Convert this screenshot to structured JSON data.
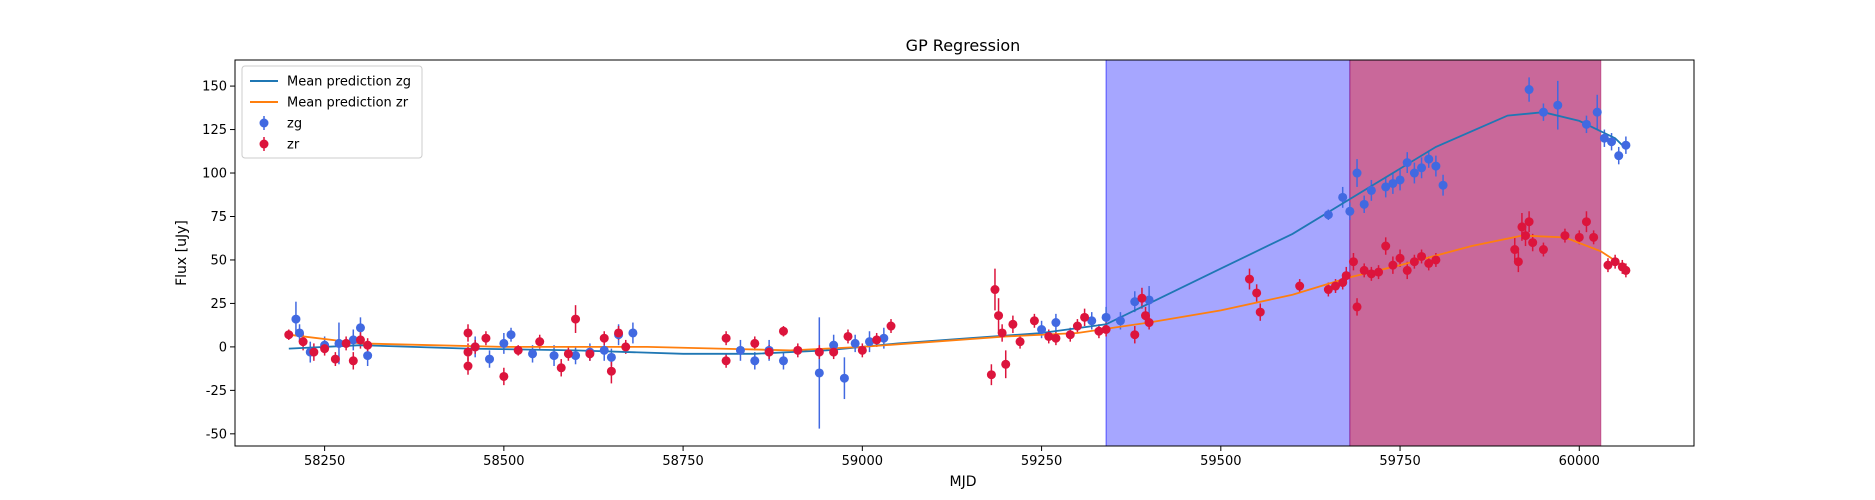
{
  "chart_data": {
    "type": "scatter",
    "title": "GP Regression",
    "xlabel": "MJD",
    "ylabel": "Flux [uJy]",
    "xlim": [
      58125,
      60160
    ],
    "ylim": [
      -57,
      165
    ],
    "xticks": [
      58250,
      58500,
      58750,
      59000,
      59250,
      59500,
      59750,
      60000
    ],
    "yticks": [
      -50,
      -25,
      0,
      25,
      50,
      75,
      100,
      125,
      150
    ],
    "grid": false,
    "legend_position": "top-left",
    "legend": [
      {
        "label": "Mean prediction zg",
        "kind": "line",
        "color": "#1f77b4"
      },
      {
        "label": "Mean prediction zr",
        "kind": "line",
        "color": "#ff7f0e"
      },
      {
        "label": "zg",
        "kind": "errorbar",
        "color": "#4169e1"
      },
      {
        "label": "zr",
        "kind": "errorbar",
        "color": "#dc143c"
      }
    ],
    "shaded_regions": [
      {
        "x0": 59340,
        "x1": 59680,
        "color": "#0000ff",
        "opacity": 0.35
      },
      {
        "x0": 59680,
        "x1": 60030,
        "color": "#b0206a",
        "opacity": 0.68
      }
    ],
    "lines": [
      {
        "name": "Mean prediction zg",
        "color": "#1f77b4",
        "x": [
          58200,
          58300,
          58450,
          58600,
          58750,
          58850,
          58950,
          59050,
          59150,
          59250,
          59340,
          59400,
          59500,
          59600,
          59700,
          59800,
          59900,
          59950,
          60000,
          60050,
          60060
        ],
        "y": [
          -1,
          1,
          -1,
          -2,
          -4,
          -4,
          -2,
          2,
          5,
          8,
          13,
          25,
          45,
          65,
          90,
          115,
          133,
          135,
          130,
          120,
          116
        ]
      },
      {
        "name": "Mean prediction zr",
        "color": "#ff7f0e",
        "x": [
          58200,
          58300,
          58400,
          58500,
          58600,
          58700,
          58800,
          58900,
          59000,
          59100,
          59200,
          59300,
          59400,
          59500,
          59600,
          59680,
          59750,
          59850,
          59920,
          59980,
          60030,
          60060
        ],
        "y": [
          7,
          2,
          1,
          0,
          0,
          0,
          -1,
          -2,
          0,
          3,
          6,
          8,
          14,
          21,
          30,
          40,
          47,
          58,
          64,
          63,
          55,
          47
        ]
      }
    ],
    "series": [
      {
        "name": "zg",
        "color": "#4169e1",
        "points": [
          {
            "x": 58210,
            "y": 16,
            "err": 10
          },
          {
            "x": 58215,
            "y": 8,
            "err": 5
          },
          {
            "x": 58230,
            "y": -3,
            "err": 6
          },
          {
            "x": 58250,
            "y": 1,
            "err": 5
          },
          {
            "x": 58270,
            "y": 2,
            "err": 12
          },
          {
            "x": 58290,
            "y": 4,
            "err": 6
          },
          {
            "x": 58300,
            "y": 11,
            "err": 6
          },
          {
            "x": 58310,
            "y": -5,
            "err": 6
          },
          {
            "x": 58460,
            "y": 0,
            "err": 6
          },
          {
            "x": 58480,
            "y": -7,
            "err": 5
          },
          {
            "x": 58500,
            "y": 2,
            "err": 6
          },
          {
            "x": 58510,
            "y": 7,
            "err": 4
          },
          {
            "x": 58540,
            "y": -4,
            "err": 5
          },
          {
            "x": 58570,
            "y": -5,
            "err": 6
          },
          {
            "x": 58600,
            "y": -5,
            "err": 5
          },
          {
            "x": 58620,
            "y": -3,
            "err": 5
          },
          {
            "x": 58640,
            "y": -2,
            "err": 6
          },
          {
            "x": 58650,
            "y": -6,
            "err": 5
          },
          {
            "x": 58660,
            "y": 7,
            "err": 6
          },
          {
            "x": 58680,
            "y": 8,
            "err": 6
          },
          {
            "x": 58830,
            "y": -2,
            "err": 6
          },
          {
            "x": 58850,
            "y": -8,
            "err": 5
          },
          {
            "x": 58870,
            "y": -2,
            "err": 6
          },
          {
            "x": 58890,
            "y": -8,
            "err": 5
          },
          {
            "x": 58940,
            "y": -15,
            "err": 32
          },
          {
            "x": 58960,
            "y": 1,
            "err": 6
          },
          {
            "x": 58975,
            "y": -18,
            "err": 12
          },
          {
            "x": 58990,
            "y": 2,
            "err": 5
          },
          {
            "x": 59010,
            "y": 3,
            "err": 6
          },
          {
            "x": 59030,
            "y": 5,
            "err": 6
          },
          {
            "x": 59250,
            "y": 10,
            "err": 5
          },
          {
            "x": 59270,
            "y": 14,
            "err": 5
          },
          {
            "x": 59320,
            "y": 15,
            "err": 5
          },
          {
            "x": 59340,
            "y": 17,
            "err": 6
          },
          {
            "x": 59360,
            "y": 15,
            "err": 5
          },
          {
            "x": 59380,
            "y": 26,
            "err": 6
          },
          {
            "x": 59400,
            "y": 27,
            "err": 8
          },
          {
            "x": 59650,
            "y": 76,
            "err": 3
          },
          {
            "x": 59670,
            "y": 86,
            "err": 6
          },
          {
            "x": 59680,
            "y": 78,
            "err": 5
          },
          {
            "x": 59690,
            "y": 100,
            "err": 8
          },
          {
            "x": 59700,
            "y": 82,
            "err": 5
          },
          {
            "x": 59710,
            "y": 90,
            "err": 6
          },
          {
            "x": 59730,
            "y": 92,
            "err": 6
          },
          {
            "x": 59740,
            "y": 94,
            "err": 6
          },
          {
            "x": 59750,
            "y": 96,
            "err": 6
          },
          {
            "x": 59760,
            "y": 106,
            "err": 6
          },
          {
            "x": 59770,
            "y": 100,
            "err": 6
          },
          {
            "x": 59780,
            "y": 103,
            "err": 6
          },
          {
            "x": 59790,
            "y": 108,
            "err": 5
          },
          {
            "x": 59800,
            "y": 104,
            "err": 6
          },
          {
            "x": 59810,
            "y": 93,
            "err": 6
          },
          {
            "x": 59930,
            "y": 148,
            "err": 7
          },
          {
            "x": 59950,
            "y": 135,
            "err": 5
          },
          {
            "x": 59970,
            "y": 139,
            "err": 14
          },
          {
            "x": 60010,
            "y": 128,
            "err": 5
          },
          {
            "x": 60025,
            "y": 135,
            "err": 10
          },
          {
            "x": 60035,
            "y": 120,
            "err": 5
          },
          {
            "x": 60045,
            "y": 118,
            "err": 5
          },
          {
            "x": 60055,
            "y": 110,
            "err": 5
          },
          {
            "x": 60065,
            "y": 116,
            "err": 5
          }
        ]
      },
      {
        "name": "zr",
        "color": "#dc143c",
        "points": [
          {
            "x": 58200,
            "y": 7,
            "err": 3
          },
          {
            "x": 58220,
            "y": 3,
            "err": 5
          },
          {
            "x": 58235,
            "y": -3,
            "err": 5
          },
          {
            "x": 58250,
            "y": -1,
            "err": 4
          },
          {
            "x": 58265,
            "y": -7,
            "err": 4
          },
          {
            "x": 58280,
            "y": 2,
            "err": 4
          },
          {
            "x": 58290,
            "y": -8,
            "err": 5
          },
          {
            "x": 58300,
            "y": 4,
            "err": 5
          },
          {
            "x": 58310,
            "y": 1,
            "err": 4
          },
          {
            "x": 58450,
            "y": 8,
            "err": 5
          },
          {
            "x": 58450,
            "y": -3,
            "err": 5
          },
          {
            "x": 58450,
            "y": -11,
            "err": 5
          },
          {
            "x": 58460,
            "y": 0,
            "err": 4
          },
          {
            "x": 58475,
            "y": 5,
            "err": 4
          },
          {
            "x": 58500,
            "y": -17,
            "err": 5
          },
          {
            "x": 58520,
            "y": -2,
            "err": 3
          },
          {
            "x": 58550,
            "y": 3,
            "err": 4
          },
          {
            "x": 58580,
            "y": -12,
            "err": 5
          },
          {
            "x": 58590,
            "y": -4,
            "err": 4
          },
          {
            "x": 58600,
            "y": 16,
            "err": 8
          },
          {
            "x": 58620,
            "y": -4,
            "err": 4
          },
          {
            "x": 58640,
            "y": 5,
            "err": 4
          },
          {
            "x": 58650,
            "y": -14,
            "err": 7
          },
          {
            "x": 58660,
            "y": 8,
            "err": 4
          },
          {
            "x": 58670,
            "y": 0,
            "err": 4
          },
          {
            "x": 58810,
            "y": 5,
            "err": 4
          },
          {
            "x": 58810,
            "y": -8,
            "err": 4
          },
          {
            "x": 58850,
            "y": 2,
            "err": 4
          },
          {
            "x": 58870,
            "y": -3,
            "err": 4
          },
          {
            "x": 58890,
            "y": 9,
            "err": 3
          },
          {
            "x": 58910,
            "y": -2,
            "err": 4
          },
          {
            "x": 58940,
            "y": -3,
            "err": 4
          },
          {
            "x": 58960,
            "y": -3,
            "err": 4
          },
          {
            "x": 58980,
            "y": 6,
            "err": 4
          },
          {
            "x": 59000,
            "y": -2,
            "err": 4
          },
          {
            "x": 59020,
            "y": 4,
            "err": 4
          },
          {
            "x": 59040,
            "y": 12,
            "err": 4
          },
          {
            "x": 59180,
            "y": -16,
            "err": 6
          },
          {
            "x": 59185,
            "y": 33,
            "err": 12
          },
          {
            "x": 59190,
            "y": 18,
            "err": 10
          },
          {
            "x": 59195,
            "y": 8,
            "err": 5
          },
          {
            "x": 59200,
            "y": -10,
            "err": 8
          },
          {
            "x": 59210,
            "y": 13,
            "err": 5
          },
          {
            "x": 59220,
            "y": 3,
            "err": 4
          },
          {
            "x": 59240,
            "y": 15,
            "err": 4
          },
          {
            "x": 59260,
            "y": 6,
            "err": 4
          },
          {
            "x": 59270,
            "y": 5,
            "err": 4
          },
          {
            "x": 59290,
            "y": 7,
            "err": 4
          },
          {
            "x": 59300,
            "y": 12,
            "err": 4
          },
          {
            "x": 59310,
            "y": 17,
            "err": 5
          },
          {
            "x": 59330,
            "y": 9,
            "err": 4
          },
          {
            "x": 59340,
            "y": 10,
            "err": 4
          },
          {
            "x": 59380,
            "y": 7,
            "err": 5
          },
          {
            "x": 59390,
            "y": 28,
            "err": 6
          },
          {
            "x": 59395,
            "y": 18,
            "err": 5
          },
          {
            "x": 59400,
            "y": 14,
            "err": 4
          },
          {
            "x": 59540,
            "y": 39,
            "err": 6
          },
          {
            "x": 59550,
            "y": 31,
            "err": 5
          },
          {
            "x": 59555,
            "y": 20,
            "err": 5
          },
          {
            "x": 59610,
            "y": 35,
            "err": 4
          },
          {
            "x": 59650,
            "y": 33,
            "err": 4
          },
          {
            "x": 59660,
            "y": 35,
            "err": 4
          },
          {
            "x": 59670,
            "y": 37,
            "err": 4
          },
          {
            "x": 59675,
            "y": 41,
            "err": 5
          },
          {
            "x": 59685,
            "y": 49,
            "err": 5
          },
          {
            "x": 59690,
            "y": 23,
            "err": 5
          },
          {
            "x": 59700,
            "y": 44,
            "err": 4
          },
          {
            "x": 59710,
            "y": 42,
            "err": 4
          },
          {
            "x": 59720,
            "y": 43,
            "err": 4
          },
          {
            "x": 59730,
            "y": 58,
            "err": 5
          },
          {
            "x": 59740,
            "y": 47,
            "err": 5
          },
          {
            "x": 59750,
            "y": 51,
            "err": 5
          },
          {
            "x": 59760,
            "y": 44,
            "err": 5
          },
          {
            "x": 59770,
            "y": 49,
            "err": 4
          },
          {
            "x": 59780,
            "y": 52,
            "err": 4
          },
          {
            "x": 59790,
            "y": 48,
            "err": 4
          },
          {
            "x": 59800,
            "y": 50,
            "err": 4
          },
          {
            "x": 59910,
            "y": 56,
            "err": 7
          },
          {
            "x": 59915,
            "y": 49,
            "err": 6
          },
          {
            "x": 59920,
            "y": 69,
            "err": 8
          },
          {
            "x": 59925,
            "y": 64,
            "err": 6
          },
          {
            "x": 59930,
            "y": 72,
            "err": 6
          },
          {
            "x": 59935,
            "y": 60,
            "err": 5
          },
          {
            "x": 59950,
            "y": 56,
            "err": 4
          },
          {
            "x": 59980,
            "y": 64,
            "err": 4
          },
          {
            "x": 60000,
            "y": 63,
            "err": 4
          },
          {
            "x": 60010,
            "y": 72,
            "err": 6
          },
          {
            "x": 60020,
            "y": 63,
            "err": 4
          },
          {
            "x": 60040,
            "y": 47,
            "err": 4
          },
          {
            "x": 60050,
            "y": 49,
            "err": 4
          },
          {
            "x": 60060,
            "y": 46,
            "err": 4
          },
          {
            "x": 60065,
            "y": 44,
            "err": 4
          }
        ]
      }
    ]
  }
}
